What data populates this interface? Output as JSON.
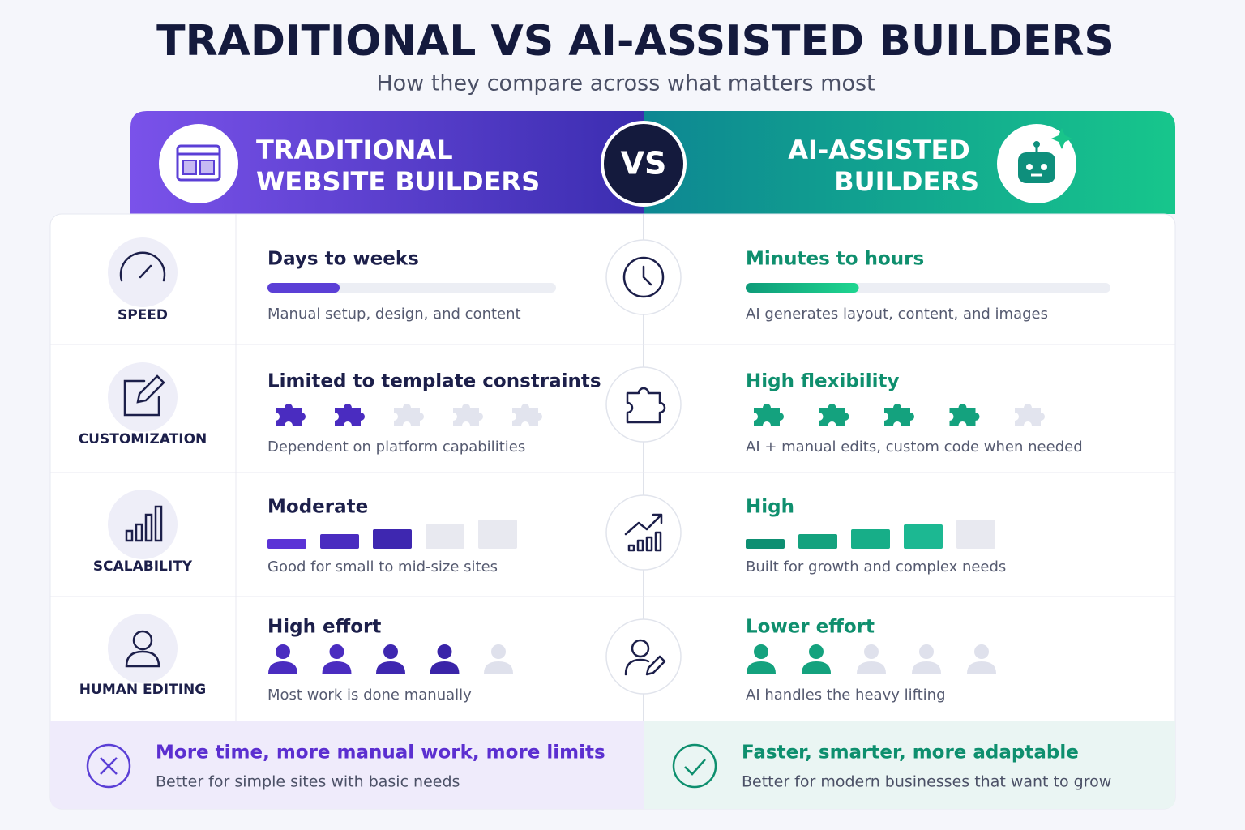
{
  "header": {
    "title": "TRADITIONAL VS AI-ASSISTED BUILDERS",
    "subtitle": "How they compare across what matters most"
  },
  "columns": {
    "left": {
      "title_lines": [
        "TRADITIONAL",
        "WEBSITE BUILDERS"
      ]
    },
    "vs": "VS",
    "right": {
      "title_lines": [
        "AI-ASSISTED",
        "BUILDERS"
      ]
    }
  },
  "rows": [
    {
      "label": "SPEED",
      "kind": "progress",
      "max": 100,
      "left": {
        "heading": "Days to weeks",
        "level": 25,
        "note": "Manual setup, design, and content"
      },
      "right": {
        "heading": "Minutes to hours",
        "level": 31,
        "note": "AI generates layout, content, and images"
      }
    },
    {
      "label": "CUSTOMIZATION",
      "kind": "puzzle",
      "max": 5,
      "left": {
        "heading": "Limited to template constraints",
        "level": 2,
        "note": "Dependent on platform capabilities"
      },
      "right": {
        "heading": "High flexibility",
        "level": 4,
        "note": "AI + manual edits, custom code when needed"
      }
    },
    {
      "label": "SCALABILITY",
      "kind": "blocks",
      "max": 5,
      "left": {
        "heading": "Moderate",
        "level": 3,
        "note": "Good for small to mid-size sites"
      },
      "right": {
        "heading": "High",
        "level": 4,
        "note": "Built for growth and complex needs"
      }
    },
    {
      "label": "HUMAN EDITING",
      "kind": "people",
      "max": 5,
      "left": {
        "heading": "High effort",
        "level": 4,
        "note": "Most work is done manually"
      },
      "right": {
        "heading": "Lower effort",
        "level": 2,
        "note": "AI handles the heavy lifting"
      }
    }
  ],
  "footer": {
    "left": {
      "heading": "More time, more manual work, more limits",
      "note": "Better for simple sites with basic needs"
    },
    "right": {
      "heading": "Faster, smarter, more adaptable",
      "note": "Better for modern businesses that want to grow"
    }
  }
}
